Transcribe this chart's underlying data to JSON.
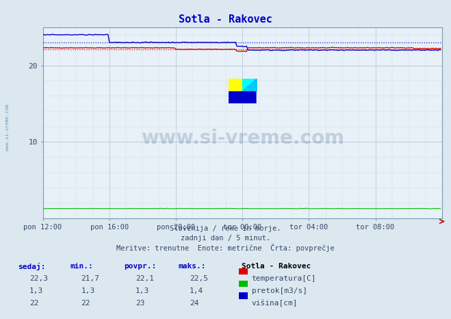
{
  "title": "Sotla - Rakovec",
  "title_color": "#0000cc",
  "title_fontsize": 11,
  "bg_color": "#dce8f0",
  "plot_bg_color": "#e8f0f8",
  "grid_color_major": "#b0c4d4",
  "grid_color_minor": "#ccdde8",
  "xlim": [
    0,
    288
  ],
  "ylim": [
    0,
    25
  ],
  "yticks": [
    10,
    20
  ],
  "xtick_labels": [
    "pon 12:00",
    "pon 16:00",
    "pon 20:00",
    "tor 00:00",
    "tor 04:00",
    "tor 08:00"
  ],
  "xtick_positions": [
    0,
    48,
    96,
    144,
    192,
    240
  ],
  "subtitle_lines": [
    "Slovenija / reke in morje.",
    "zadnji dan / 5 minut.",
    "Meritve: trenutne  Enote: metrične  Črta: povprečje"
  ],
  "legend_title": "Sotla - Rakovec",
  "legend_items": [
    {
      "label": "temperatura[C]",
      "color": "#dd0000"
    },
    {
      "label": "pretok[m3/s]",
      "color": "#00bb00"
    },
    {
      "label": "višina[cm]",
      "color": "#0000cc"
    }
  ],
  "table_headers": [
    "sedaj:",
    "min.:",
    "povpr.:",
    "maks.:"
  ],
  "table_data": [
    [
      "22,3",
      "21,7",
      "22,1",
      "22,5"
    ],
    [
      "1,3",
      "1,3",
      "1,3",
      "1,4"
    ],
    [
      "22",
      "22",
      "23",
      "24"
    ]
  ],
  "temp_color": "#dd0000",
  "flow_color": "#00bb00",
  "height_color": "#0000cc",
  "avg_temp": 22.1,
  "avg_height": 23.0,
  "watermark_text": "www.si-vreme.com",
  "watermark_color": "#1a3a6a",
  "watermark_alpha": 0.18,
  "sidebar_text": "www.si-vreme.com",
  "sidebar_color": "#4488aa",
  "axis_label_color": "#334466",
  "tick_color": "#334466",
  "spine_color": "#7799aa"
}
